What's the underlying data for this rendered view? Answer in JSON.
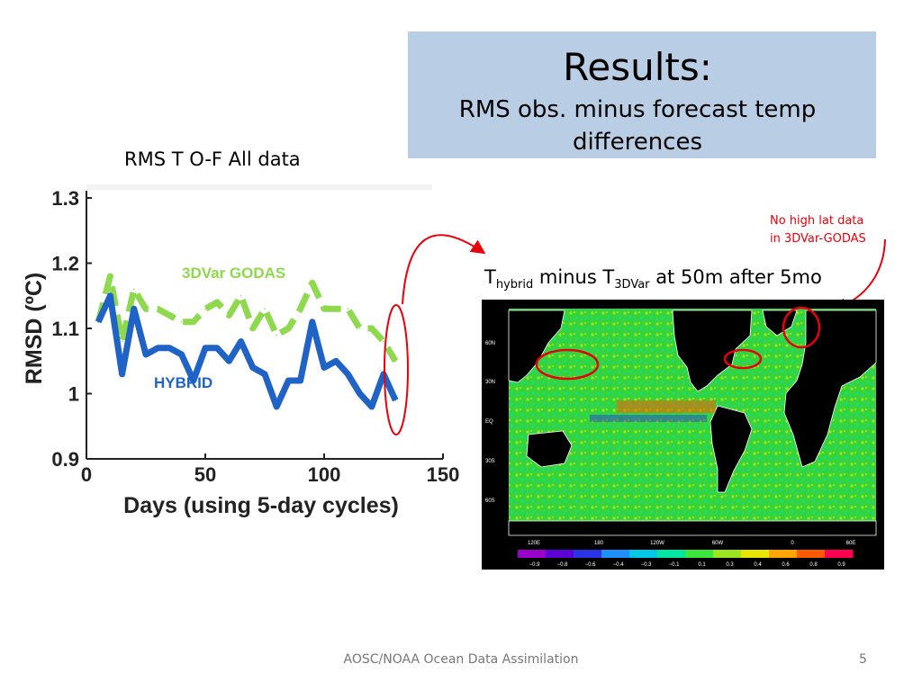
{
  "slide": {
    "title": "Results:",
    "subtitle_line1": "RMS obs. minus forecast  temp",
    "subtitle_line2": "differences",
    "chart_label": "RMS T O-F All data",
    "annotation_line1": "No high lat data",
    "annotation_line2": "in 3DVar-GODAS",
    "map_title_prefix": "T",
    "map_title_sub1": "hybrid",
    "map_title_mid": " minus T",
    "map_title_sub2": "3DVar",
    "map_title_suffix": " at 50m after 5mo",
    "footer": "AOSC/NOAA Ocean Data Assimilation",
    "page_number": "5"
  },
  "colors": {
    "title_box": "#b9cde5",
    "series_3dvar": "#8fd94e",
    "series_hybrid": "#1f63c6",
    "annotation": "#e8000b"
  },
  "chart_data": [
    {
      "type": "line",
      "title": "",
      "xlabel": "Days (using 5-day cycles)",
      "ylabel": "RMSD (ºC)",
      "xlim": [
        0,
        150
      ],
      "ylim": [
        0.9,
        1.3
      ],
      "x_ticks": [
        "0",
        "50",
        "100",
        "150"
      ],
      "y_ticks": [
        "0.9",
        "1",
        "1.1",
        "1.2",
        "1.3"
      ],
      "grid": false,
      "series": [
        {
          "name": "3DVar GODAS",
          "style": "dashed",
          "color": "#8fd94e",
          "x": [
            5,
            10,
            15,
            20,
            25,
            30,
            35,
            40,
            45,
            50,
            55,
            60,
            65,
            70,
            75,
            80,
            85,
            90,
            95,
            100,
            105,
            110,
            115,
            120,
            125,
            130
          ],
          "y": [
            1.11,
            1.18,
            1.08,
            1.16,
            1.13,
            1.13,
            1.12,
            1.11,
            1.11,
            1.13,
            1.14,
            1.12,
            1.15,
            1.1,
            1.13,
            1.09,
            1.1,
            1.13,
            1.17,
            1.13,
            1.13,
            1.13,
            1.1,
            1.1,
            1.08,
            1.05
          ]
        },
        {
          "name": "HYBRID",
          "style": "solid",
          "color": "#1f63c6",
          "x": [
            5,
            10,
            15,
            20,
            25,
            30,
            35,
            40,
            45,
            50,
            55,
            60,
            65,
            70,
            75,
            80,
            85,
            90,
            95,
            100,
            105,
            110,
            115,
            120,
            125,
            130
          ],
          "y": [
            1.11,
            1.15,
            1.03,
            1.13,
            1.06,
            1.07,
            1.07,
            1.06,
            1.02,
            1.07,
            1.07,
            1.05,
            1.08,
            1.04,
            1.03,
            0.98,
            1.02,
            1.02,
            1.11,
            1.04,
            1.05,
            1.03,
            1.0,
            0.98,
            1.03,
            0.99
          ]
        }
      ]
    },
    {
      "type": "heatmap",
      "title": "",
      "colorbar_ticks": [
        "−0.9",
        "−0.8",
        "−0.6",
        "−0.4",
        "−0.3",
        "−0.1",
        "0.1",
        "0.3",
        "0.4",
        "0.6",
        "0.8",
        "0.9"
      ],
      "colorbar_colors": [
        "#9900cc",
        "#5b00d6",
        "#2a34e6",
        "#1e90ff",
        "#00c8e8",
        "#00e6a0",
        "#3ce63c",
        "#9be61e",
        "#e6e600",
        "#ffa500",
        "#ff5a00",
        "#ff0050"
      ],
      "lat_labels": [
        "60N",
        "30N",
        "EQ",
        "30S",
        "60S"
      ],
      "lon_labels": [
        "120E",
        "180",
        "120W",
        "60W",
        "0",
        "60E"
      ]
    }
  ]
}
